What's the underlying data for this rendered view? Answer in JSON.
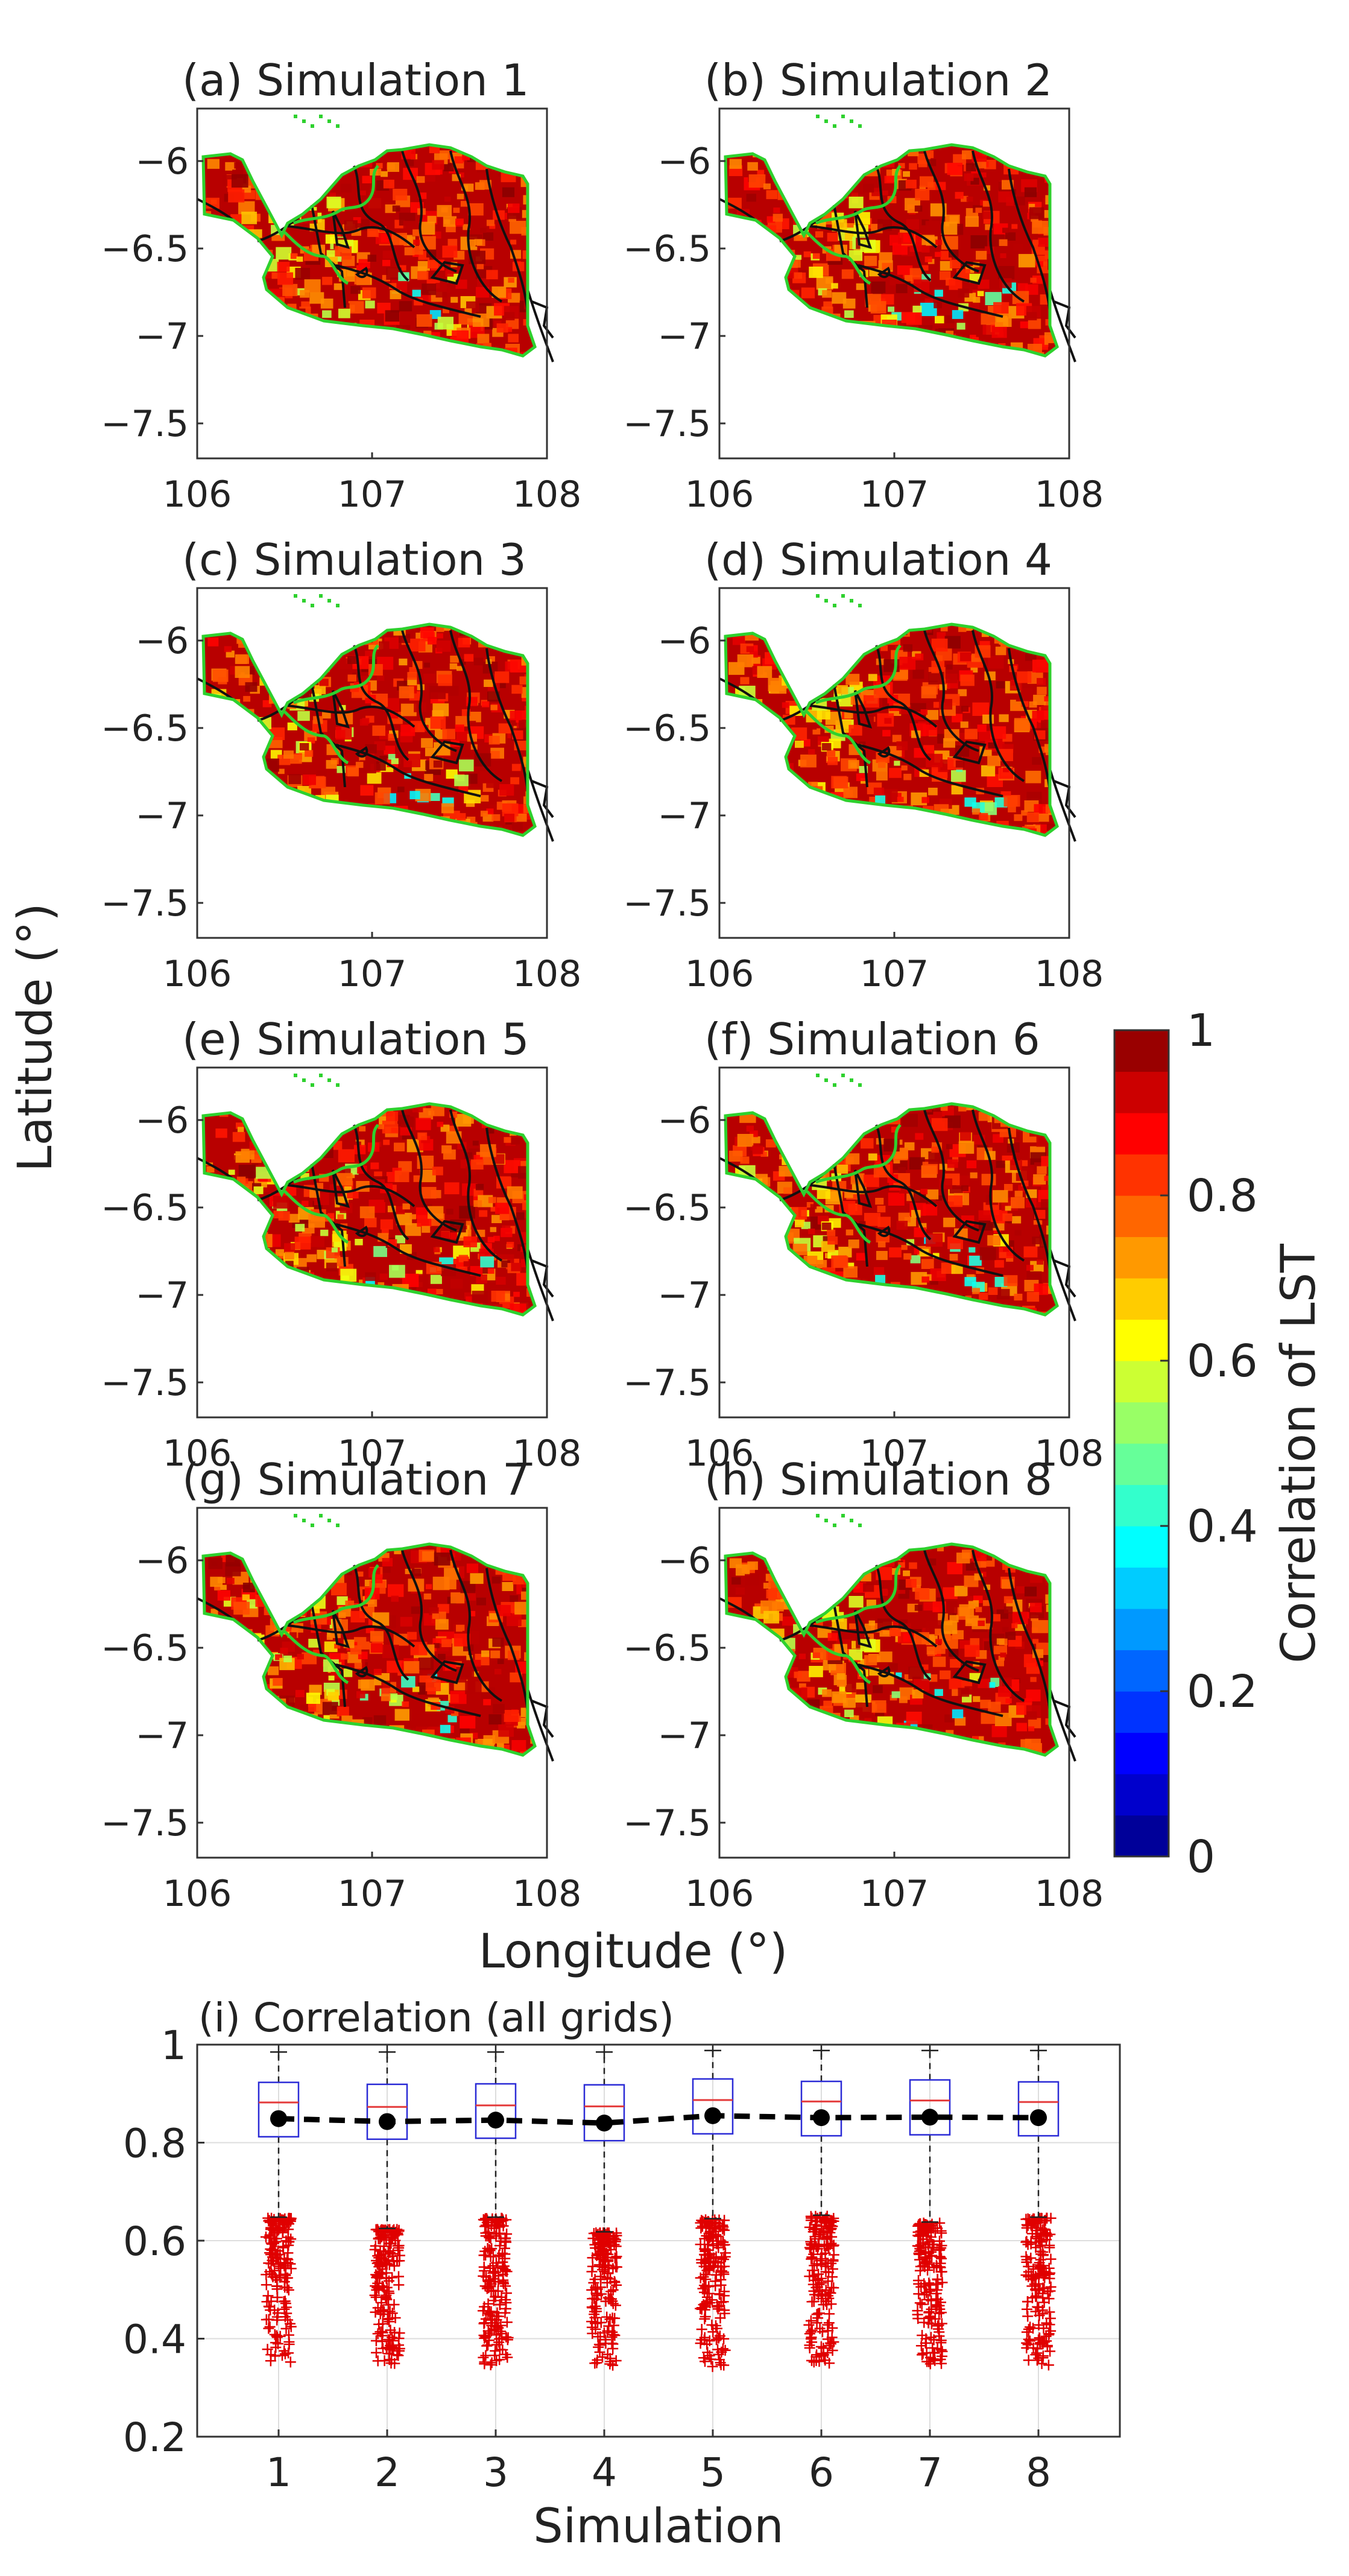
{
  "chart_data": [
    {
      "type": "map-panels",
      "panel_titles": [
        "(a) Simulation 1",
        "(b) Simulation 2",
        "(c) Simulation 3",
        "(d) Simulation 4",
        "(e) Simulation 5",
        "(f) Simulation 6",
        "(g) Simulation 7",
        "(h) Simulation 8"
      ],
      "xlabel": "Longitude (°)",
      "ylabel": "Latitude (°)",
      "xlim": [
        106,
        108
      ],
      "ylim": [
        -7.7,
        -5.7
      ],
      "xticks": [
        106,
        107,
        108
      ],
      "xtick_labels": [
        "106",
        "107",
        "108"
      ],
      "yticks": [
        -6,
        -6.5,
        -7,
        -7.5
      ],
      "ytick_labels": [
        "−6",
        "−6.5",
        "−7",
        "−7.5"
      ]
    },
    {
      "type": "colorbar",
      "label": "Correlation of LST",
      "range": [
        0,
        1
      ],
      "ticks": [
        0,
        0.2,
        0.4,
        0.6,
        0.8,
        1
      ],
      "tick_labels": [
        "0",
        "0.2",
        "0.4",
        "0.6",
        "0.8",
        "1"
      ],
      "colormap": "jet",
      "levels": 20
    },
    {
      "type": "box",
      "title": "(i) Correlation (all grids)",
      "xlabel": "Simulation",
      "ylabel": "",
      "categories": [
        "1",
        "2",
        "3",
        "4",
        "5",
        "6",
        "7",
        "8"
      ],
      "ylim": [
        0.2,
        1
      ],
      "yticks": [
        0.2,
        0.4,
        0.6,
        0.8,
        1
      ],
      "ytick_labels": [
        "0.2",
        "0.4",
        "0.6",
        "0.8",
        "1"
      ],
      "grid": true,
      "boxes": [
        {
          "q1": 0.812,
          "median": 0.882,
          "q3": 0.923,
          "whisker_low": 0.648,
          "whisker_high": 0.985,
          "mean": 0.849,
          "outlier_min": 0.352
        },
        {
          "q1": 0.807,
          "median": 0.873,
          "q3": 0.919,
          "whisker_low": 0.625,
          "whisker_high": 0.985,
          "mean": 0.843,
          "outlier_min": 0.348
        },
        {
          "q1": 0.809,
          "median": 0.876,
          "q3": 0.92,
          "whisker_low": 0.648,
          "whisker_high": 0.985,
          "mean": 0.846,
          "outlier_min": 0.343
        },
        {
          "q1": 0.804,
          "median": 0.874,
          "q3": 0.918,
          "whisker_low": 0.618,
          "whisker_high": 0.985,
          "mean": 0.84,
          "outlier_min": 0.342
        },
        {
          "q1": 0.818,
          "median": 0.887,
          "q3": 0.93,
          "whisker_low": 0.645,
          "whisker_high": 0.988,
          "mean": 0.855,
          "outlier_min": 0.342
        },
        {
          "q1": 0.814,
          "median": 0.884,
          "q3": 0.925,
          "whisker_low": 0.652,
          "whisker_high": 0.988,
          "mean": 0.851,
          "outlier_min": 0.35
        },
        {
          "q1": 0.816,
          "median": 0.886,
          "q3": 0.928,
          "whisker_low": 0.638,
          "whisker_high": 0.988,
          "mean": 0.852,
          "outlier_min": 0.345
        },
        {
          "q1": 0.814,
          "median": 0.883,
          "q3": 0.924,
          "whisker_low": 0.648,
          "whisker_high": 0.988,
          "mean": 0.851,
          "outlier_min": 0.343
        }
      ],
      "colors": {
        "box": "#2b2bd6",
        "median": "#e43b3b",
        "outlier": "#e00000",
        "mean": "#000000",
        "grid": "#dddddd"
      }
    }
  ]
}
